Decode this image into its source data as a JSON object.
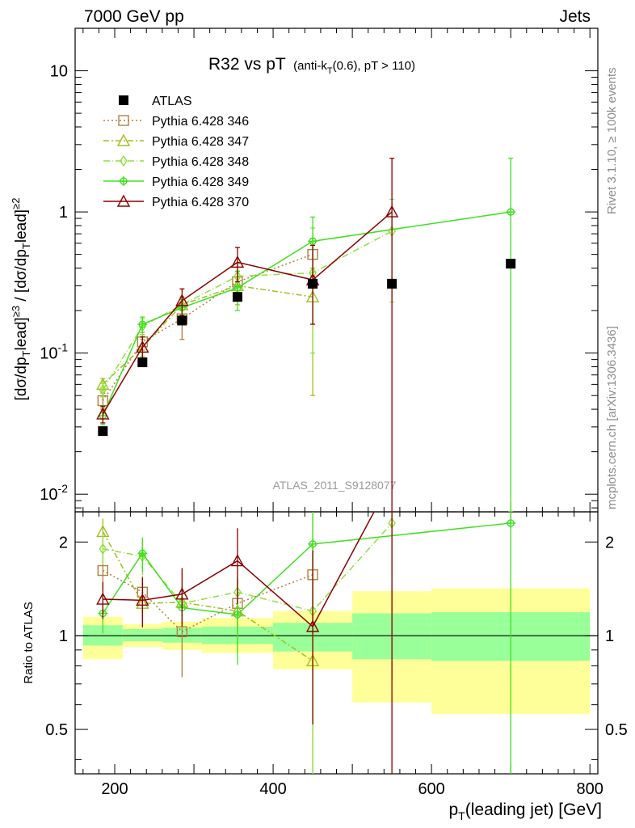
{
  "header": {
    "left": "7000 GeV pp",
    "right": "Jets"
  },
  "title": {
    "main": "R32 vs pT",
    "sub": "(anti-k",
    "sub_sub": "T",
    "sub_tail": "(0.6), pT > 110)"
  },
  "side_labels": {
    "rivet": "Rivet 3.1.10, ≥ 100k events",
    "mcplots": "mcplots.cern.ch [arXiv:1306.3436]"
  },
  "watermark": "ATLAS_2011_S9128077",
  "ylabel_top": "[dσ/dp_Tlead]^≥3 / [dσ/dp_Tlead]^≥2",
  "ylabel_bottom": "Ratio to ATLAS",
  "xlabel": "p_T(leading jet) [GeV]",
  "colors": {
    "data": "#000000",
    "346": "#b08040",
    "347": "#a0c020",
    "348": "#90e040",
    "349": "#40e020",
    "370": "#8b0000",
    "band_stat": "#99ff99",
    "band_total": "#ffff99"
  },
  "chart_data": {
    "type": "scatter",
    "xlim": [
      150,
      810
    ],
    "ylim_top": [
      0.0075,
      20
    ],
    "ylim_bottom": [
      0.36,
      2.5
    ],
    "log_y": true,
    "x_ticks": [
      200,
      400,
      600,
      800
    ],
    "y_ticks_top": [
      "10^-2",
      "10^-1",
      "1",
      "10"
    ],
    "y_ticks_bottom": [
      "0.5",
      "1",
      "2"
    ],
    "data": {
      "name": "ATLAS",
      "x": [
        185,
        235,
        285,
        355,
        450,
        550,
        700
      ],
      "y": [
        0.028,
        0.086,
        0.17,
        0.25,
        0.31,
        0.31,
        0.43
      ],
      "bins": [
        [
          160,
          210
        ],
        [
          210,
          260
        ],
        [
          260,
          310
        ],
        [
          310,
          400
        ],
        [
          400,
          500
        ],
        [
          500,
          600
        ],
        [
          600,
          800
        ]
      ],
      "stat_band": [
        [
          0.93,
          1.08
        ],
        [
          0.96,
          1.05
        ],
        [
          0.95,
          1.06
        ],
        [
          0.94,
          1.07
        ],
        [
          0.89,
          1.1
        ],
        [
          0.84,
          1.18
        ],
        [
          0.83,
          1.19
        ]
      ],
      "total_band": [
        [
          0.84,
          1.15
        ],
        [
          0.92,
          1.09
        ],
        [
          0.9,
          1.11
        ],
        [
          0.88,
          1.14
        ],
        [
          0.78,
          1.2
        ],
        [
          0.61,
          1.39
        ],
        [
          0.56,
          1.42
        ]
      ]
    },
    "series": [
      {
        "name": "Pythia 6.428 346",
        "key": "346",
        "marker": "square",
        "dash": "2,3",
        "x": [
          185,
          235,
          285,
          355,
          450
        ],
        "y": [
          0.046,
          0.12,
          0.175,
          0.32,
          0.5
        ],
        "err_lo": [
          0.006,
          0.015,
          0.05,
          0.06,
          0.15
        ],
        "err_hi": [
          0.006,
          0.015,
          0.05,
          0.06,
          0.15
        ],
        "ratio": [
          1.62,
          1.38,
          1.03,
          1.27,
          1.57
        ]
      },
      {
        "name": "Pythia 6.428 347",
        "key": "347",
        "marker": "triangle",
        "dash": "7,3,2,3",
        "x": [
          185,
          235,
          285,
          355,
          450
        ],
        "y": [
          0.06,
          0.11,
          0.22,
          0.3,
          0.25
        ],
        "err_lo": [
          0.006,
          0.015,
          0.03,
          0.08,
          0.2
        ],
        "err_hi": [
          0.006,
          0.015,
          0.03,
          0.08,
          0.15
        ],
        "ratio": [
          2.16,
          1.27,
          1.28,
          1.2,
          0.83
        ]
      },
      {
        "name": "Pythia 6.428 348",
        "key": "348",
        "marker": "diamond",
        "dash": "8,3,1,3",
        "x": [
          185,
          235,
          285,
          355,
          450,
          550
        ],
        "y": [
          0.055,
          0.155,
          0.22,
          0.35,
          0.37,
          0.73
        ],
        "err_lo": [
          0.006,
          0.02,
          0.03,
          0.08,
          0.27,
          0.5
        ],
        "err_hi": [
          0.006,
          0.02,
          0.03,
          0.08,
          0.4,
          0.5
        ],
        "ratio": [
          1.9,
          1.8,
          1.27,
          1.38,
          1.2,
          2.3
        ]
      },
      {
        "name": "Pythia 6.428 349",
        "key": "349",
        "marker": "cross",
        "dash": "",
        "x": [
          185,
          235,
          285,
          355,
          450,
          700
        ],
        "y": [
          0.036,
          0.16,
          0.21,
          0.29,
          0.62,
          1.0
        ],
        "err_lo": [
          0.005,
          0.02,
          0.03,
          0.09,
          0.3,
          0.995
        ],
        "err_hi": [
          0.005,
          0.02,
          0.03,
          0.09,
          0.3,
          1.4
        ],
        "ratio": [
          1.18,
          1.84,
          1.23,
          1.17,
          1.97,
          2.3
        ]
      },
      {
        "name": "Pythia 6.428 370",
        "key": "370",
        "marker": "triangle",
        "dash": "",
        "x": [
          185,
          235,
          285,
          355,
          450,
          550
        ],
        "y": [
          0.037,
          0.11,
          0.235,
          0.44,
          0.33,
          1.0
        ],
        "err_lo": [
          0.005,
          0.02,
          0.05,
          0.12,
          0.17,
          0.997
        ],
        "err_hi": [
          0.005,
          0.02,
          0.05,
          0.12,
          0.25,
          1.4
        ],
        "ratio": [
          1.31,
          1.3,
          1.36,
          1.74,
          1.07,
          3.2
        ]
      }
    ]
  }
}
